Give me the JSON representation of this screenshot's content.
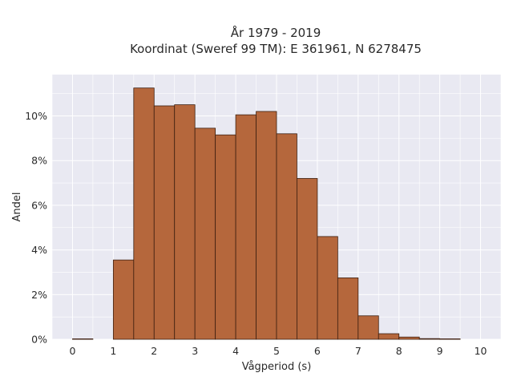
{
  "chart_data": {
    "type": "bar",
    "title_line1": "År 1979 - 2019",
    "title_line2": "Koordinat (Sweref 99 TM): E 361961, N 6278475",
    "xlabel": "Vågperiod (s)",
    "ylabel": "Andel",
    "bin_width": 0.5,
    "bins": [
      {
        "start": 0.0,
        "value": 0.02
      },
      {
        "start": 0.5,
        "value": 0.0
      },
      {
        "start": 1.0,
        "value": 3.55
      },
      {
        "start": 1.5,
        "value": 11.25
      },
      {
        "start": 2.0,
        "value": 10.45
      },
      {
        "start": 2.5,
        "value": 10.5
      },
      {
        "start": 3.0,
        "value": 9.45
      },
      {
        "start": 3.5,
        "value": 9.15
      },
      {
        "start": 4.0,
        "value": 10.05
      },
      {
        "start": 4.5,
        "value": 10.2
      },
      {
        "start": 5.0,
        "value": 9.2
      },
      {
        "start": 5.5,
        "value": 7.2
      },
      {
        "start": 6.0,
        "value": 4.6
      },
      {
        "start": 6.5,
        "value": 2.75
      },
      {
        "start": 7.0,
        "value": 1.05
      },
      {
        "start": 7.5,
        "value": 0.25
      },
      {
        "start": 8.0,
        "value": 0.1
      },
      {
        "start": 8.5,
        "value": 0.03
      },
      {
        "start": 9.0,
        "value": 0.02
      },
      {
        "start": 9.5,
        "value": 0.0
      }
    ],
    "x_ticks": [
      0,
      1,
      2,
      3,
      4,
      5,
      6,
      7,
      8,
      9,
      10
    ],
    "y_ticks": [
      0,
      2,
      4,
      6,
      8,
      10
    ],
    "y_tick_suffix": "%",
    "xlim": [
      -0.5,
      10.5
    ],
    "ylim": [
      0,
      11.85
    ],
    "grid": true,
    "colors": {
      "bar_fill": "#b5673c",
      "bar_stroke": "#3d1f10",
      "plot_bg": "#e9e9f2",
      "grid": "#ffffff"
    }
  }
}
